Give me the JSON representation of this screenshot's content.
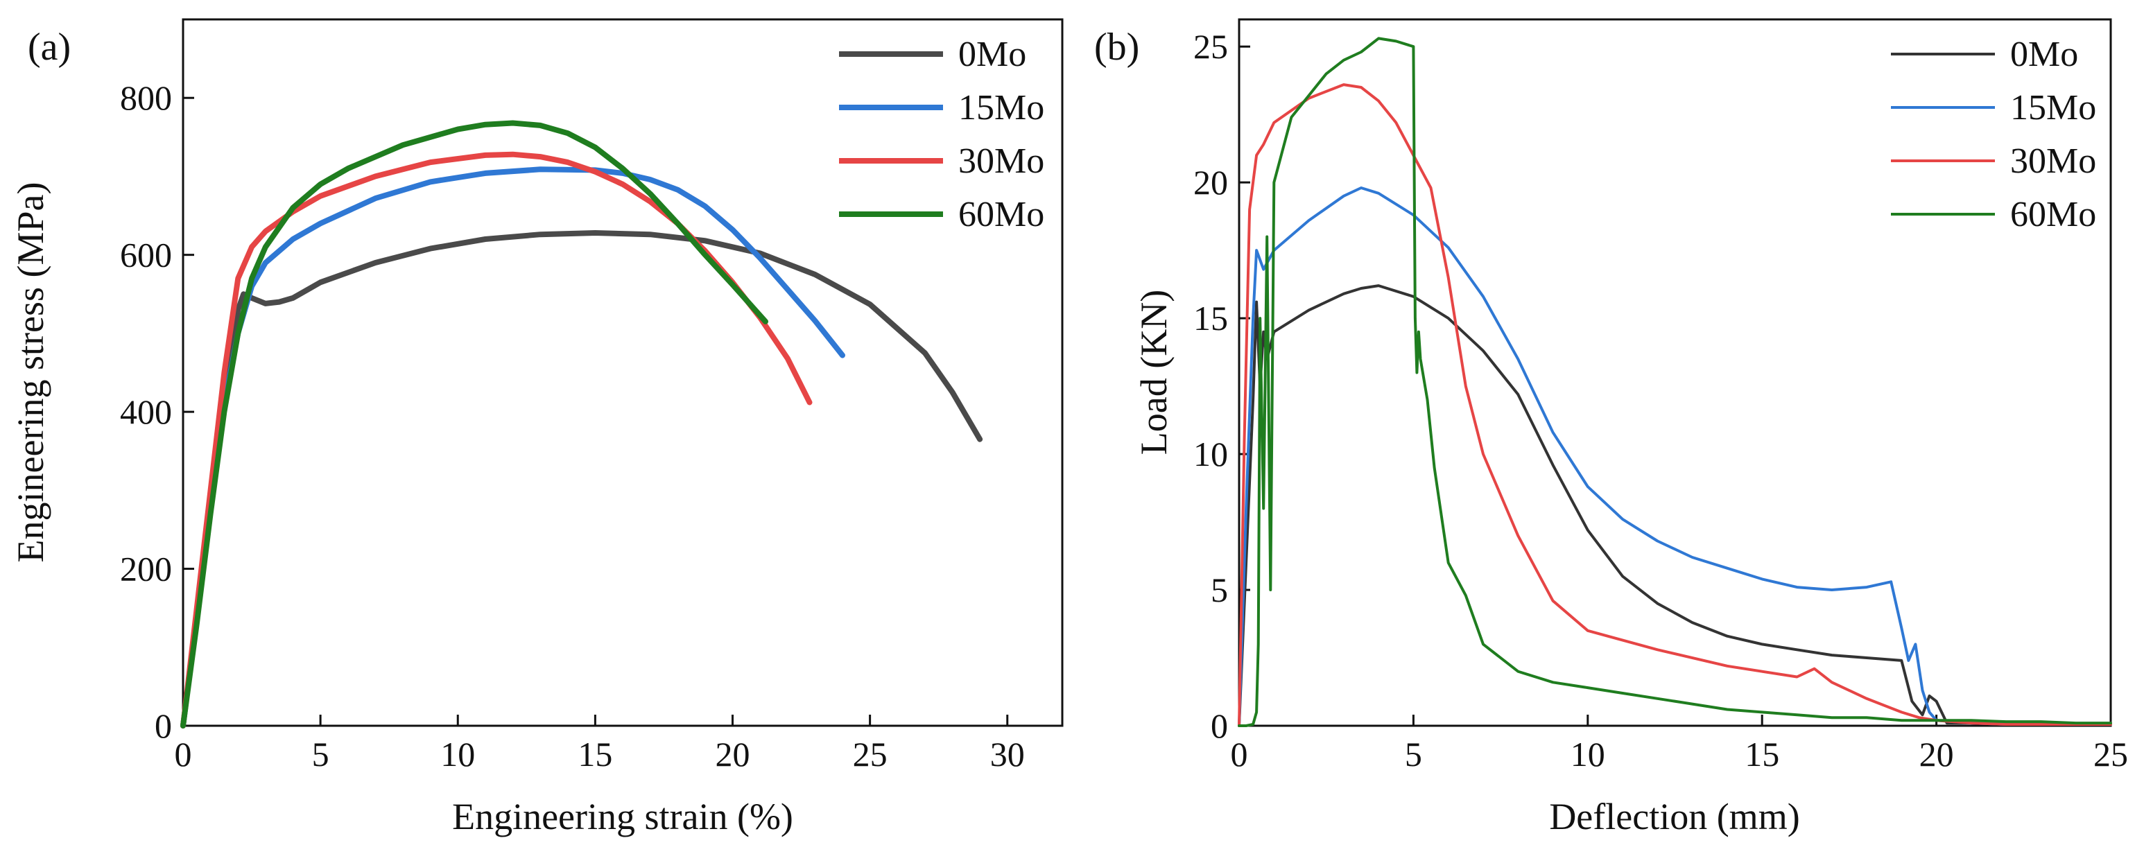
{
  "chart_data": [
    {
      "type": "line",
      "panel_label": "(a)",
      "title": "",
      "xlabel": "Engineering strain (%)",
      "ylabel": "Engineering stress (MPa)",
      "xlim": [
        0,
        32
      ],
      "ylim": [
        0,
        900
      ],
      "xticks": [
        0,
        5,
        10,
        15,
        20,
        25,
        30
      ],
      "yticks": [
        0,
        200,
        400,
        600,
        800
      ],
      "grid": false,
      "legend_position": "top-right",
      "series": [
        {
          "name": "0Mo",
          "color": "#4a4a4a",
          "x": [
            0,
            0.5,
            1,
            1.5,
            2,
            2.2,
            2.5,
            3,
            3.5,
            4,
            4.5,
            5,
            7,
            9,
            11,
            13,
            15,
            17,
            19,
            21,
            23,
            25,
            27,
            28,
            29
          ],
          "y": [
            0,
            140,
            280,
            415,
            530,
            550,
            545,
            538,
            540,
            545,
            555,
            565,
            590,
            608,
            620,
            626,
            628,
            626,
            618,
            602,
            575,
            537,
            475,
            425,
            365
          ]
        },
        {
          "name": "15Mo",
          "color": "#2f78d4",
          "x": [
            0,
            0.5,
            1,
            1.5,
            2,
            2.5,
            3,
            4,
            5,
            7,
            9,
            11,
            13,
            15,
            16,
            17,
            18,
            19,
            20,
            21,
            22,
            23,
            24
          ],
          "y": [
            0,
            140,
            280,
            410,
            500,
            560,
            590,
            620,
            640,
            672,
            693,
            704,
            709,
            708,
            704,
            696,
            683,
            662,
            632,
            596,
            556,
            516,
            472
          ]
        },
        {
          "name": "30Mo",
          "color": "#e64545",
          "x": [
            0,
            0.5,
            1,
            1.5,
            2,
            2.5,
            3,
            4,
            5,
            7,
            9,
            11,
            12,
            13,
            14,
            15,
            16,
            17,
            18,
            19,
            20,
            21,
            22,
            22.8
          ],
          "y": [
            0,
            150,
            300,
            450,
            570,
            610,
            630,
            655,
            675,
            700,
            718,
            727,
            728,
            725,
            718,
            706,
            690,
            668,
            640,
            605,
            565,
            520,
            468,
            412
          ]
        },
        {
          "name": "60Mo",
          "color": "#1f7d1f",
          "x": [
            0,
            0.5,
            1,
            1.5,
            2,
            2.5,
            3,
            4,
            5,
            6,
            8,
            10,
            11,
            12,
            13,
            14,
            15,
            16,
            17,
            18,
            19,
            20,
            21.2
          ],
          "y": [
            0,
            130,
            270,
            400,
            500,
            570,
            610,
            660,
            690,
            710,
            740,
            760,
            766,
            768,
            765,
            755,
            737,
            710,
            678,
            640,
            600,
            562,
            515
          ]
        }
      ]
    },
    {
      "type": "line",
      "panel_label": "(b)",
      "title": "",
      "xlabel": "Deflection (mm)",
      "ylabel": "Load (KN)",
      "xlim": [
        0,
        25
      ],
      "ylim": [
        0,
        26
      ],
      "xticks": [
        0,
        5,
        10,
        15,
        20,
        25
      ],
      "yticks": [
        0,
        5,
        10,
        15,
        20,
        25
      ],
      "grid": false,
      "legend_position": "top-right",
      "series": [
        {
          "name": "0Mo",
          "color": "#333333",
          "x": [
            0,
            0.2,
            0.4,
            0.5,
            0.6,
            0.7,
            0.8,
            1,
            2,
            3,
            3.5,
            4,
            5,
            6,
            7,
            8,
            9,
            10,
            11,
            12,
            13,
            14,
            15,
            16,
            17,
            18,
            19,
            19.3,
            19.6,
            19.8,
            20,
            20.3,
            21,
            22,
            23,
            24,
            25
          ],
          "y": [
            0,
            6,
            12,
            15.6,
            12.5,
            14.5,
            13.5,
            14.5,
            15.3,
            15.9,
            16.1,
            16.2,
            15.8,
            15.0,
            13.8,
            12.2,
            9.6,
            7.2,
            5.5,
            4.5,
            3.8,
            3.3,
            3.0,
            2.8,
            2.6,
            2.5,
            2.4,
            0.9,
            0.4,
            1.1,
            0.9,
            0.1,
            0.1,
            0.05,
            0.05,
            0.05,
            0.05
          ]
        },
        {
          "name": "15Mo",
          "color": "#2f78d4",
          "x": [
            0,
            0.2,
            0.4,
            0.5,
            0.7,
            1,
            2,
            3,
            3.5,
            4,
            5,
            6,
            7,
            8,
            9,
            10,
            11,
            12,
            13,
            14,
            15,
            16,
            17,
            18,
            18.7,
            19,
            19.2,
            19.4,
            19.6,
            19.8,
            20,
            21,
            22,
            23,
            24,
            25
          ],
          "y": [
            0,
            8,
            15,
            17.5,
            16.8,
            17.5,
            18.6,
            19.5,
            19.8,
            19.6,
            18.8,
            17.6,
            15.8,
            13.5,
            10.8,
            8.8,
            7.6,
            6.8,
            6.2,
            5.8,
            5.4,
            5.1,
            5.0,
            5.1,
            5.3,
            3.6,
            2.4,
            3.0,
            1.3,
            0.5,
            0.2,
            0.1,
            0.05,
            0.05,
            0.05,
            0.05
          ]
        },
        {
          "name": "30Mo",
          "color": "#e64545",
          "x": [
            0,
            0.15,
            0.3,
            0.5,
            0.7,
            1,
            2,
            3,
            3.5,
            4,
            4.5,
            5,
            5.5,
            6,
            6.5,
            7,
            8,
            9,
            10,
            12,
            14,
            16,
            16.5,
            17,
            18,
            19,
            19.5,
            20,
            21,
            22,
            23,
            24,
            25
          ],
          "y": [
            0,
            10.5,
            19,
            21,
            21.4,
            22.2,
            23.1,
            23.6,
            23.5,
            23.0,
            22.2,
            21.0,
            19.8,
            16.5,
            12.5,
            10.0,
            7.0,
            4.6,
            3.5,
            2.8,
            2.2,
            1.8,
            2.1,
            1.6,
            1.0,
            0.5,
            0.3,
            0.2,
            0.1,
            0.05,
            0.05,
            0.05,
            0.05
          ]
        },
        {
          "name": "60Mo",
          "color": "#1f7d1f",
          "x": [
            0,
            0.2,
            0.4,
            0.5,
            0.55,
            0.6,
            0.7,
            0.8,
            0.9,
            1,
            1.5,
            2,
            2.5,
            3,
            3.5,
            4,
            4.5,
            5,
            5.05,
            5.1,
            5.15,
            5.2,
            5.4,
            5.6,
            6,
            6.5,
            7,
            8,
            9,
            10,
            11,
            12,
            13,
            14,
            15,
            16,
            17,
            18,
            19,
            20,
            21,
            22,
            23,
            24,
            25
          ],
          "y": [
            0,
            0,
            0.05,
            0.5,
            3,
            15,
            8,
            18,
            5,
            20,
            22.4,
            23.2,
            24.0,
            24.5,
            24.8,
            25.3,
            25.2,
            25.0,
            15,
            13,
            14.5,
            13.5,
            12,
            9.5,
            6.0,
            4.8,
            3.0,
            2.0,
            1.6,
            1.4,
            1.2,
            1.0,
            0.8,
            0.6,
            0.5,
            0.4,
            0.3,
            0.3,
            0.2,
            0.2,
            0.2,
            0.15,
            0.15,
            0.1,
            0.1
          ]
        }
      ]
    }
  ]
}
